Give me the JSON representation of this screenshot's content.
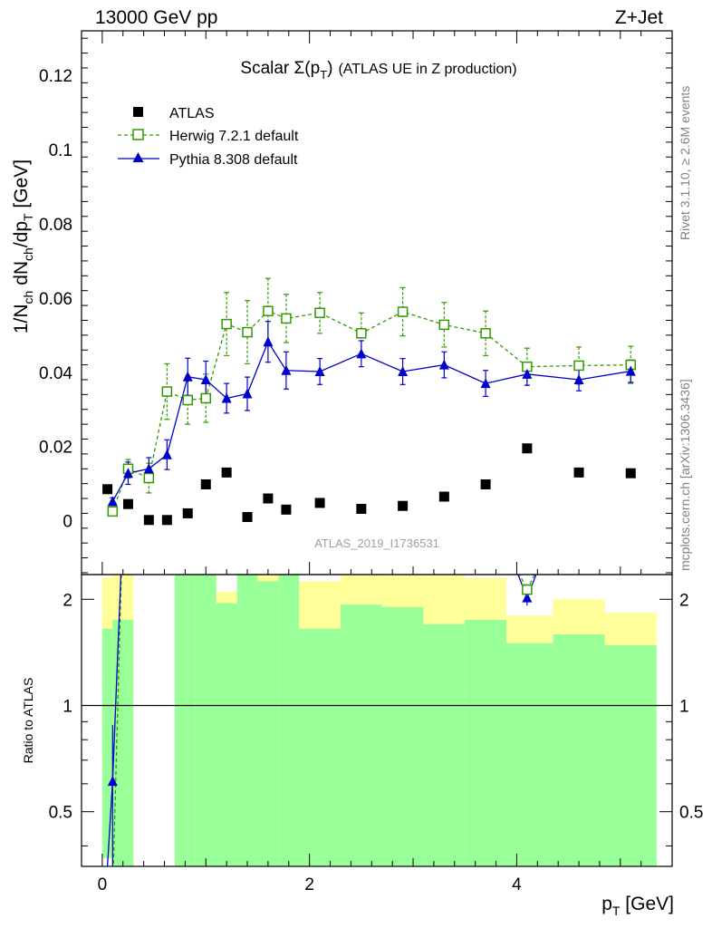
{
  "header": {
    "left": "13000 GeV pp",
    "right": "Z+Jet"
  },
  "side": {
    "rivet": "Rivet 3.1.10, ≥ 2.6M events",
    "mcplots": "mcplots.cern.ch [arXiv:1306.3436]"
  },
  "title_main": "Scalar Σ(p",
  "title_sub": "T",
  "title_close": ")",
  "title_rest": "(ATLAS UE in Z production)",
  "watermark": "ATLAS_2019_I1736531",
  "upper_ylabel": "1/N",
  "upper_ylabel_sub1": "ch",
  "upper_ylabel_mid": " dN",
  "upper_ylabel_sub2": "ch",
  "upper_ylabel_mid2": "/dp",
  "upper_ylabel_sub3": "T",
  "upper_ylabel_unit": " [GeV]",
  "lower_ylabel": "Ratio to ATLAS",
  "xlabel_main": "p",
  "xlabel_sub": "T",
  "xlabel_unit": " [GeV]",
  "colors": {
    "data": "#000000",
    "herwig": "#339900",
    "pythia": "#0000cc",
    "band_yellow": "#ffff99",
    "band_green": "#99ff99"
  },
  "chart_data": {
    "type": "scatter",
    "x_ticks": [
      "0",
      "2",
      "4"
    ],
    "upper_y_ticks": [
      "0",
      "0.02",
      "0.04",
      "0.06",
      "0.08",
      "0.1",
      "0.12"
    ],
    "ratio_y_ticks": [
      "0.5",
      "1",
      "2"
    ],
    "xlim": [
      -0.2,
      5.5
    ],
    "ylim": [
      -0.0145,
      0.132
    ],
    "ratio_ylim": [
      0.35,
      2.35
    ],
    "ratio_scale": "log",
    "legend_position": "top-left",
    "series": [
      {
        "name": "ATLAS",
        "style": "markers",
        "points": [
          [
            0.05,
            0.0085
          ],
          [
            0.25,
            0.0045
          ],
          [
            0.45,
            0.0002
          ],
          [
            0.625,
            0.0002
          ],
          [
            0.825,
            0.002
          ],
          [
            1.0,
            0.0098
          ],
          [
            1.2,
            0.013
          ],
          [
            1.4,
            0.001
          ],
          [
            1.6,
            0.006
          ],
          [
            1.775,
            0.003
          ],
          [
            2.1,
            0.0048
          ],
          [
            2.5,
            0.0032
          ],
          [
            2.9,
            0.004
          ],
          [
            3.3,
            0.0065
          ],
          [
            3.7,
            0.0098
          ],
          [
            4.1,
            0.0195
          ],
          [
            4.6,
            0.013
          ],
          [
            5.1,
            0.0128
          ]
        ]
      },
      {
        "name": "Herwig 7.2.1 default",
        "style": "dashed-open-squares",
        "points": [
          [
            0.1,
            0.0025,
            0.001
          ],
          [
            0.25,
            0.014,
            0.0025
          ],
          [
            0.45,
            0.0115,
            0.004
          ],
          [
            0.625,
            0.0348,
            0.0075
          ],
          [
            0.825,
            0.0325,
            0.0065
          ],
          [
            1.0,
            0.033,
            0.0065
          ],
          [
            1.2,
            0.053,
            0.0085
          ],
          [
            1.4,
            0.0508,
            0.0085
          ],
          [
            1.6,
            0.0565,
            0.0088
          ],
          [
            1.775,
            0.0545,
            0.0065
          ],
          [
            2.1,
            0.056,
            0.0055
          ],
          [
            2.5,
            0.0505,
            0.0055
          ],
          [
            2.9,
            0.0563,
            0.0065
          ],
          [
            3.3,
            0.0528,
            0.006
          ],
          [
            3.7,
            0.0505,
            0.006
          ],
          [
            4.1,
            0.0415,
            0.005
          ],
          [
            4.6,
            0.0418,
            0.005
          ],
          [
            5.1,
            0.042,
            0.005
          ]
        ]
      },
      {
        "name": "Pythia 8.308 default",
        "style": "solid-filled-triangles",
        "points": [
          [
            0.1,
            0.0052,
            0.001
          ],
          [
            0.25,
            0.0128,
            0.003
          ],
          [
            0.45,
            0.014,
            0.003
          ],
          [
            0.625,
            0.0178,
            0.004
          ],
          [
            0.825,
            0.0388,
            0.005
          ],
          [
            1.0,
            0.038,
            0.005
          ],
          [
            1.2,
            0.033,
            0.004
          ],
          [
            1.4,
            0.0342,
            0.0045
          ],
          [
            1.6,
            0.0482,
            0.0055
          ],
          [
            1.775,
            0.0405,
            0.005
          ],
          [
            2.1,
            0.0402,
            0.0035
          ],
          [
            2.5,
            0.045,
            0.0035
          ],
          [
            2.9,
            0.0402,
            0.0035
          ],
          [
            3.3,
            0.042,
            0.0035
          ],
          [
            3.7,
            0.037,
            0.0035
          ],
          [
            4.1,
            0.0395,
            0.003
          ],
          [
            4.6,
            0.038,
            0.003
          ],
          [
            5.1,
            0.0403,
            0.003
          ]
        ]
      }
    ],
    "ratio_series": [
      {
        "name": "Herwig 7.2.1 default",
        "points": [
          [
            0.1,
            0.29
          ],
          [
            4.1,
            2.13
          ]
        ]
      },
      {
        "name": "Pythia 8.308 default",
        "points": [
          [
            0.1,
            0.61
          ],
          [
            4.1,
            2.02
          ]
        ]
      }
    ],
    "ratio_bands": [
      [
        0.0,
        0.1,
        0.37,
        2.3,
        0.37,
        1.65
      ],
      [
        0.1,
        0.3,
        0.3,
        2.5,
        0.3,
        1.75
      ],
      [
        0.7,
        0.9,
        0.3,
        3.0,
        0.3,
        3.0
      ],
      [
        0.9,
        1.1,
        0.3,
        3.0,
        0.3,
        3.0
      ],
      [
        1.1,
        1.3,
        0.44,
        2.1,
        0.3,
        1.95
      ],
      [
        1.3,
        1.5,
        0.3,
        3.0,
        0.3,
        3.0
      ],
      [
        1.5,
        1.7,
        0.3,
        3.0,
        0.3,
        2.25
      ],
      [
        1.7,
        1.9,
        0.3,
        3.0,
        0.3,
        3.0
      ],
      [
        1.9,
        2.3,
        0.38,
        2.25,
        0.35,
        1.65
      ],
      [
        2.3,
        2.7,
        0.3,
        2.4,
        0.3,
        1.93
      ],
      [
        2.7,
        3.1,
        0.3,
        2.4,
        0.3,
        1.9
      ],
      [
        3.1,
        3.5,
        0.42,
        2.4,
        0.3,
        1.7
      ],
      [
        3.5,
        3.9,
        0.3,
        2.3,
        0.3,
        1.75
      ],
      [
        3.9,
        4.35,
        0.66,
        1.8,
        0.3,
        1.5
      ],
      [
        4.35,
        4.85,
        0.47,
        2.0,
        0.3,
        1.59
      ],
      [
        4.85,
        5.35,
        0.64,
        1.83,
        0.3,
        1.48
      ]
    ]
  }
}
